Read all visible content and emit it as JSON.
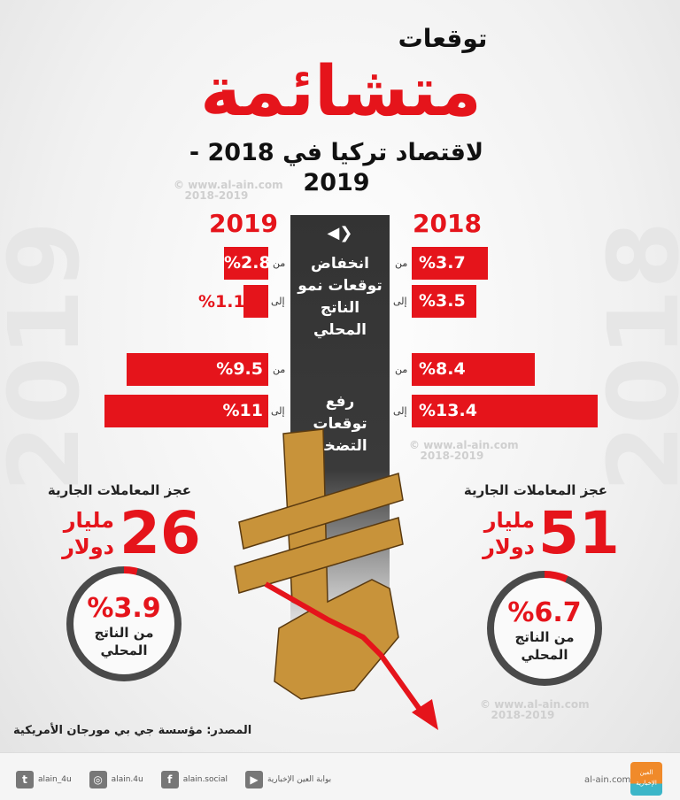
{
  "header": {
    "kicker": "توقعات",
    "title": "متشائمة",
    "subtitle": "لاقتصاد تركيا في 2018 - 2019"
  },
  "watermark": {
    "site": "www.al-ain.com",
    "years": "2018-2019"
  },
  "background_years": {
    "left": "2019",
    "right": "2018"
  },
  "years": {
    "left": "2019",
    "right": "2018"
  },
  "gdp": {
    "label": "انخفاض توقعات نمو الناتج المحلي",
    "arrows_icon": "left-right-arrows-icon",
    "y2018": {
      "from_label": "من",
      "from": "%3.7",
      "to_label": "إلى",
      "to": "%3.5"
    },
    "y2019": {
      "from_label": "من",
      "from": "%2.8",
      "to_label": "إلى",
      "to": "%1.1"
    }
  },
  "inflation": {
    "label": "رفع توقعات التضخم",
    "y2018": {
      "from_label": "من",
      "from": "%8.4",
      "to_label": "إلى",
      "to": "%13.4"
    },
    "y2019": {
      "from_label": "من",
      "from": "%9.5",
      "to_label": "إلى",
      "to": "%11"
    }
  },
  "current_account": {
    "y2018": {
      "title": "عجز المعاملات الجارية",
      "value": "51",
      "unit1": "مليار",
      "unit2": "دولار",
      "pct": "%6.7",
      "pct_label1": "من الناتج",
      "pct_label2": "المحلي",
      "pct_value": 6.7
    },
    "y2019": {
      "title": "عجز المعاملات الجارية",
      "value": "26",
      "unit1": "مليار",
      "unit2": "دولار",
      "pct": "%3.9",
      "pct_label1": "من الناتج",
      "pct_label2": "المحلي",
      "pct_value": 3.9
    }
  },
  "source": "المصدر: مؤسسة جي بي مورجان الأمريكية",
  "colors": {
    "accent": "#e5141b",
    "dark": "#333333",
    "gold": "#d4a243"
  },
  "footer": {
    "site": "al-ain.com",
    "logo_text": "العين الإخبارية",
    "social": [
      {
        "icon": "twitter-icon",
        "glyph": "t",
        "label": "alain_4u"
      },
      {
        "icon": "instagram-icon",
        "glyph": "◎",
        "label": "alain.4u"
      },
      {
        "icon": "facebook-icon",
        "glyph": "f",
        "label": "alain.social"
      },
      {
        "icon": "youtube-icon",
        "glyph": "▶",
        "label": "بوابة العين الإخبارية"
      }
    ]
  }
}
